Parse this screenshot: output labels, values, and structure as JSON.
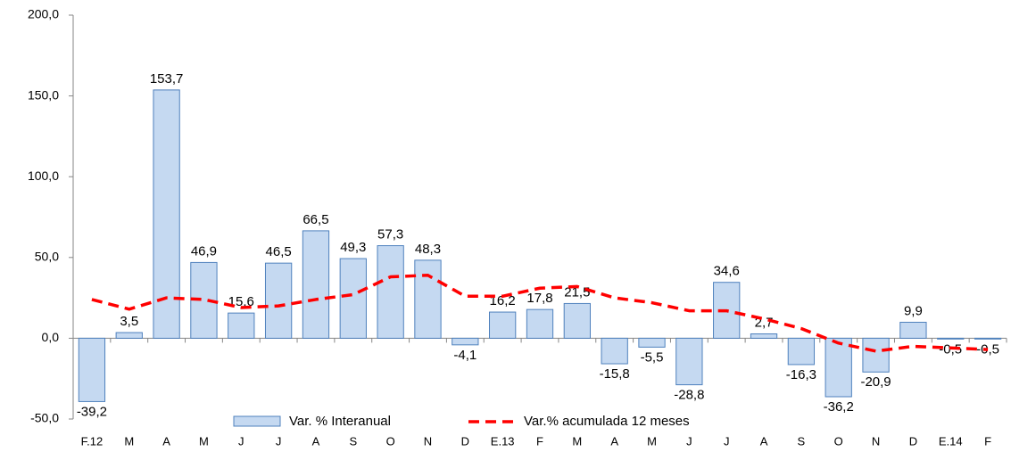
{
  "chart_data": {
    "type": "bar",
    "categories": [
      "F.12",
      "M",
      "A",
      "M",
      "J",
      "J",
      "A",
      "S",
      "O",
      "N",
      "D",
      "E.13",
      "F",
      "M",
      "A",
      "M",
      "J",
      "J",
      "A",
      "S",
      "O",
      "N",
      "D",
      "E.14",
      "F"
    ],
    "ylim": [
      -50,
      200
    ],
    "yticks": [
      {
        "value": -50,
        "label": "-50,0"
      },
      {
        "value": 0,
        "label": "0,0"
      },
      {
        "value": 50,
        "label": "50,0"
      },
      {
        "value": 100,
        "label": "100,0"
      },
      {
        "value": 150,
        "label": "150,0"
      },
      {
        "value": 200,
        "label": "200,0"
      }
    ],
    "series": [
      {
        "name": "Var. % Interanual",
        "type": "bar",
        "color": "#c5d9f1",
        "edge_color": "#4f81bd",
        "values": [
          -39.2,
          3.5,
          153.7,
          46.9,
          15.6,
          46.5,
          66.5,
          49.3,
          57.3,
          48.3,
          -4.1,
          16.2,
          17.8,
          21.5,
          -15.8,
          -5.5,
          -28.8,
          34.6,
          2.7,
          -16.3,
          -36.2,
          -20.9,
          9.9,
          -0.5,
          -0.5
        ],
        "value_labels": [
          "-39,2",
          "3,5",
          "153,7",
          "46,9",
          "15,6",
          "46,5",
          "66,5",
          "49,3",
          "57,3",
          "48,3",
          "-4,1",
          "16,2",
          "17,8",
          "21,5",
          "-15,8",
          "-5,5",
          "-28,8",
          "34,6",
          "2,7",
          "-16,3",
          "-36,2",
          "-20,9",
          "9,9",
          "-0,5",
          "-0,5"
        ]
      },
      {
        "name": "Var.% acumulada 12 meses",
        "type": "line",
        "color": "#ff0000",
        "values": [
          24,
          18,
          25,
          24,
          19,
          20,
          24,
          27,
          38,
          39,
          26,
          26,
          31,
          32,
          25,
          22,
          17,
          17,
          12,
          6,
          -3,
          -8,
          -5,
          -6,
          -7
        ]
      }
    ]
  }
}
